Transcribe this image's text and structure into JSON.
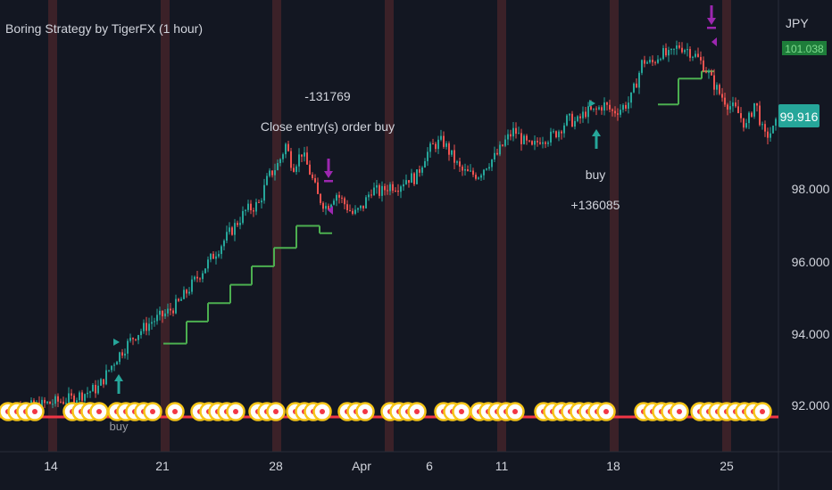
{
  "title": "Boring Strategy by TigerFX (1 hour)",
  "currency": "JPY",
  "colors": {
    "background": "#131722",
    "session_band": "#3b2128",
    "candle_up": "#26a69a",
    "candle_down": "#ef5350",
    "stop_line": "#4caf50",
    "exit_marker": "#9c27b0",
    "price_tag": "#26a69a",
    "hidden_tag": "#1e7d3a",
    "bottom_line": "#f23645",
    "circle_outer": "#f5c518",
    "circle_inner": "#ffffff",
    "circle_dot": "#f23645"
  },
  "chart_data": {
    "type": "candlestick",
    "x_ticks": [
      "14",
      "21",
      "28",
      "Apr",
      "6",
      "11",
      "18",
      "25"
    ],
    "y_ticks": [
      "92.000",
      "94.000",
      "96.000",
      "98.000",
      "99.916"
    ],
    "ylim": [
      91.5,
      102.2
    ],
    "last_price": "99.916",
    "hidden_price_tag": "101.038",
    "price_path": [
      [
        0,
        92.0
      ],
      [
        40,
        92.1
      ],
      [
        80,
        92.3
      ],
      [
        110,
        92.6
      ],
      [
        130,
        93.4
      ],
      [
        150,
        94.0
      ],
      [
        170,
        94.4
      ],
      [
        185,
        94.6
      ],
      [
        200,
        94.9
      ],
      [
        215,
        95.4
      ],
      [
        230,
        95.9
      ],
      [
        245,
        96.4
      ],
      [
        260,
        96.9
      ],
      [
        275,
        97.4
      ],
      [
        290,
        97.6
      ],
      [
        300,
        98.3
      ],
      [
        312,
        98.7
      ],
      [
        320,
        99.2
      ],
      [
        328,
        98.6
      ],
      [
        338,
        99.0
      ],
      [
        348,
        98.4
      ],
      [
        356,
        97.8
      ],
      [
        366,
        97.5
      ],
      [
        376,
        97.9
      ],
      [
        386,
        97.6
      ],
      [
        396,
        97.3
      ],
      [
        406,
        97.5
      ],
      [
        416,
        98.0
      ],
      [
        426,
        97.9
      ],
      [
        436,
        98.1
      ],
      [
        446,
        98.1
      ],
      [
        456,
        98.3
      ],
      [
        466,
        98.3
      ],
      [
        476,
        98.9
      ],
      [
        486,
        99.2
      ],
      [
        496,
        99.3
      ],
      [
        506,
        98.9
      ],
      [
        516,
        98.5
      ],
      [
        526,
        98.4
      ],
      [
        536,
        98.4
      ],
      [
        546,
        98.7
      ],
      [
        556,
        98.9
      ],
      [
        566,
        99.3
      ],
      [
        576,
        99.6
      ],
      [
        586,
        99.3
      ],
      [
        596,
        99.1
      ],
      [
        606,
        99.4
      ],
      [
        616,
        99.4
      ],
      [
        626,
        99.6
      ],
      [
        636,
        99.9
      ],
      [
        646,
        99.8
      ],
      [
        656,
        100.1
      ],
      [
        666,
        100.1
      ],
      [
        676,
        100.3
      ],
      [
        686,
        100.1
      ],
      [
        696,
        100.2
      ],
      [
        706,
        100.4
      ],
      [
        714,
        101.0
      ],
      [
        720,
        101.5
      ],
      [
        730,
        101.4
      ],
      [
        740,
        101.7
      ],
      [
        750,
        101.6
      ],
      [
        760,
        101.9
      ],
      [
        770,
        101.8
      ],
      [
        780,
        101.6
      ],
      [
        790,
        101.3
      ],
      [
        796,
        101.0
      ],
      [
        806,
        100.6
      ],
      [
        816,
        100.3
      ],
      [
        826,
        100.1
      ],
      [
        836,
        99.7
      ],
      [
        846,
        100.4
      ],
      [
        856,
        99.4
      ],
      [
        866,
        99.6
      ],
      [
        872,
        99.9
      ]
    ],
    "stop_levels": [
      [
        183,
        209,
        93.8
      ],
      [
        209,
        233,
        94.4
      ],
      [
        233,
        258,
        94.9
      ],
      [
        258,
        282,
        95.4
      ],
      [
        282,
        307,
        95.9
      ],
      [
        307,
        332,
        96.4
      ],
      [
        332,
        358,
        97.0
      ],
      [
        358,
        372,
        96.8
      ],
      [
        737,
        760,
        100.3
      ],
      [
        760,
        786,
        101.0
      ],
      [
        786,
        800,
        101.2
      ]
    ],
    "annotations": [
      {
        "text": "-131769",
        "type": "text"
      },
      {
        "text": "Close entry(s) order buy",
        "type": "text"
      },
      {
        "text": "buy",
        "type": "text"
      },
      {
        "text": "+136085",
        "type": "text"
      },
      {
        "text": "buy",
        "type": "text"
      }
    ],
    "entry_arrows": [
      {
        "label_ref": "buy",
        "x": 668,
        "price": 99.6
      },
      {
        "x": 133,
        "price": 92.6
      }
    ],
    "exit_arrows": [
      {
        "x": 368,
        "price": 98.0
      },
      {
        "x": 797,
        "price": 102.0
      }
    ],
    "session_bands_x": [
      59,
      185,
      310,
      436,
      562,
      688,
      814
    ],
    "circle_marker_groups": [
      [
        0,
        44
      ],
      [
        72,
        115
      ],
      [
        122,
        175
      ],
      [
        187,
        200
      ],
      [
        215,
        265
      ],
      [
        280,
        310
      ],
      [
        322,
        370
      ],
      [
        380,
        415
      ],
      [
        428,
        470
      ],
      [
        488,
        520
      ],
      [
        528,
        585
      ],
      [
        600,
        680
      ],
      [
        712,
        765
      ],
      [
        775,
        855
      ]
    ]
  }
}
